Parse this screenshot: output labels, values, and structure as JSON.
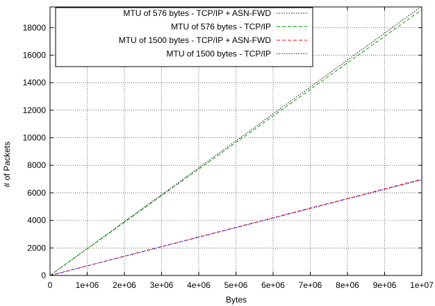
{
  "chart_data": {
    "type": "line",
    "title": "",
    "xlabel": "Bytes",
    "ylabel": "# of Packets",
    "xlim": [
      0,
      10000000
    ],
    "ylim": [
      0,
      19500
    ],
    "x_ticks": [
      0,
      1000000,
      2000000,
      3000000,
      4000000,
      5000000,
      6000000,
      7000000,
      8000000,
      9000000,
      10000000
    ],
    "x_tick_labels": [
      "0",
      "1e+06",
      "2e+06",
      "3e+06",
      "4e+06",
      "5e+06",
      "6e+06",
      "7e+06",
      "8e+06",
      "9e+06",
      "1e+07"
    ],
    "y_ticks": [
      0,
      2000,
      4000,
      6000,
      8000,
      10000,
      12000,
      14000,
      16000,
      18000
    ],
    "y_tick_labels": [
      "0",
      "2000",
      "4000",
      "6000",
      "8000",
      "10000",
      "12000",
      "14000",
      "16000",
      "18000"
    ],
    "grid": true,
    "legend_position": "top-left",
    "series": [
      {
        "name": "MTU of 576 bytes - TCP/IP + ASN-FWD",
        "color": "#000000",
        "dash": "dotted",
        "x": [
          0,
          10000000
        ],
        "y": [
          0,
          19550
        ]
      },
      {
        "name": "MTU of 576 bytes - TCP/IP",
        "color": "#00a000",
        "dash": "dashed",
        "x": [
          0,
          10000000
        ],
        "y": [
          0,
          19300
        ]
      },
      {
        "name": "MTU of 1500 bytes - TCP/IP + ASN-FWD",
        "color": "#ff0000",
        "dash": "dashed",
        "x": [
          0,
          10000000
        ],
        "y": [
          0,
          6990
        ]
      },
      {
        "name": "MTU of 1500 bytes - TCP/IP",
        "color": "#0000ff",
        "dash": "dotted",
        "x": [
          0,
          10000000
        ],
        "y": [
          0,
          6940
        ]
      }
    ]
  }
}
